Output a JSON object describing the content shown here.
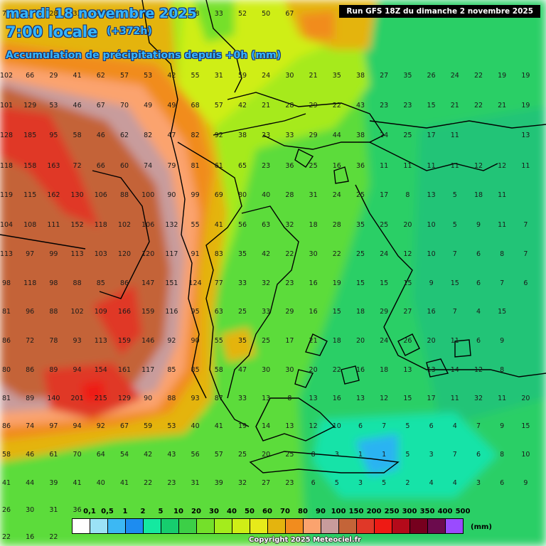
{
  "header": {
    "date_line": "mardi 18 novembre 2025",
    "time_line": "7:00 locale",
    "lead_time": "(+372h)",
    "title": "Accumulation de précipitations depuis +0h (mm)",
    "run_label": "Run GFS 18Z du dimanche 2 novembre 2025"
  },
  "legend": {
    "thresholds": [
      "0,1",
      "0,5",
      "1",
      "2",
      "5",
      "10",
      "20",
      "30",
      "40",
      "50",
      "60",
      "70",
      "80",
      "90",
      "100",
      "150",
      "200",
      "250",
      "300",
      "350",
      "400",
      "500"
    ],
    "colors": [
      "#ffffff",
      "#9be2f6",
      "#3cb8f4",
      "#1d8cf0",
      "#14e9a0",
      "#16cd6e",
      "#3ccf47",
      "#74e02a",
      "#a4ec1c",
      "#cfee16",
      "#e7ea1a",
      "#e4b40e",
      "#f18c1e",
      "#fba36e",
      "#c89c9c",
      "#c46438",
      "#e03828",
      "#ee1a14",
      "#b40a1a",
      "#76001e",
      "#6b0b4d",
      "#9a4bff"
    ],
    "unit": "(mm)"
  },
  "copyright": "Copyright 2025 Meteociel.fr",
  "grid": {
    "rows": [
      [
        "74",
        "17",
        "28",
        "33",
        "20",
        "30",
        "42",
        "29",
        "38",
        "33",
        "52",
        "50",
        "67",
        "",
        "",
        "",
        "",
        "",
        "",
        "",
        "",
        "",
        ""
      ],
      [
        "",
        "",
        "",
        "",
        "",
        "",
        "",
        "",
        "",
        "",
        "",
        "",
        "",
        "",
        "",
        "",
        "",
        "",
        "",
        "",
        "",
        "",
        ""
      ],
      [
        "102",
        "66",
        "29",
        "41",
        "62",
        "57",
        "53",
        "42",
        "55",
        "31",
        "59",
        "24",
        "30",
        "21",
        "35",
        "38",
        "27",
        "35",
        "26",
        "24",
        "22",
        "19",
        "19"
      ],
      [
        "101",
        "129",
        "53",
        "46",
        "67",
        "70",
        "49",
        "49",
        "68",
        "57",
        "42",
        "21",
        "28",
        "29",
        "22",
        "43",
        "23",
        "23",
        "15",
        "21",
        "22",
        "21",
        "19"
      ],
      [
        "128",
        "185",
        "95",
        "58",
        "46",
        "62",
        "82",
        "47",
        "82",
        "92",
        "38",
        "23",
        "33",
        "29",
        "44",
        "38",
        "24",
        "25",
        "17",
        "11",
        "",
        "",
        "13"
      ],
      [
        "118",
        "158",
        "163",
        "72",
        "66",
        "60",
        "74",
        "79",
        "81",
        "61",
        "65",
        "23",
        "36",
        "25",
        "16",
        "36",
        "11",
        "11",
        "11",
        "11",
        "12",
        "12",
        "11"
      ],
      [
        "119",
        "115",
        "162",
        "130",
        "106",
        "88",
        "100",
        "90",
        "99",
        "69",
        "80",
        "40",
        "28",
        "31",
        "24",
        "25",
        "17",
        "8",
        "13",
        "5",
        "18",
        "11",
        ""
      ],
      [
        "104",
        "108",
        "111",
        "152",
        "118",
        "102",
        "106",
        "132",
        "55",
        "41",
        "56",
        "63",
        "32",
        "18",
        "28",
        "35",
        "25",
        "20",
        "10",
        "5",
        "9",
        "11",
        "7"
      ],
      [
        "113",
        "97",
        "99",
        "113",
        "103",
        "120",
        "120",
        "117",
        "91",
        "83",
        "35",
        "42",
        "22",
        "30",
        "22",
        "25",
        "24",
        "12",
        "10",
        "7",
        "6",
        "8",
        "7"
      ],
      [
        "98",
        "118",
        "98",
        "88",
        "85",
        "86",
        "147",
        "151",
        "124",
        "77",
        "33",
        "32",
        "23",
        "16",
        "19",
        "15",
        "15",
        "15",
        "9",
        "15",
        "6",
        "7",
        "6"
      ],
      [
        "81",
        "96",
        "88",
        "102",
        "109",
        "166",
        "159",
        "116",
        "95",
        "63",
        "25",
        "33",
        "29",
        "16",
        "15",
        "18",
        "29",
        "27",
        "16",
        "7",
        "4",
        "15",
        ""
      ],
      [
        "86",
        "72",
        "78",
        "93",
        "113",
        "159",
        "146",
        "92",
        "90",
        "55",
        "35",
        "25",
        "17",
        "21",
        "18",
        "20",
        "24",
        "26",
        "20",
        "11",
        "6",
        "9",
        ""
      ],
      [
        "80",
        "86",
        "89",
        "94",
        "154",
        "161",
        "117",
        "85",
        "85",
        "58",
        "47",
        "30",
        "30",
        "20",
        "22",
        "16",
        "18",
        "13",
        "13",
        "14",
        "12",
        "8",
        ""
      ],
      [
        "81",
        "89",
        "140",
        "201",
        "215",
        "129",
        "90",
        "88",
        "93",
        "87",
        "33",
        "13",
        "8",
        "13",
        "16",
        "13",
        "12",
        "15",
        "17",
        "11",
        "32",
        "11",
        "20"
      ],
      [
        "86",
        "74",
        "97",
        "94",
        "92",
        "67",
        "59",
        "53",
        "40",
        "41",
        "19",
        "14",
        "13",
        "12",
        "10",
        "6",
        "7",
        "5",
        "6",
        "4",
        "7",
        "9",
        "15"
      ],
      [
        "58",
        "46",
        "61",
        "70",
        "64",
        "54",
        "42",
        "43",
        "56",
        "57",
        "25",
        "20",
        "25",
        "8",
        "3",
        "1",
        "1",
        "5",
        "3",
        "7",
        "6",
        "8",
        "10"
      ],
      [
        "41",
        "44",
        "39",
        "41",
        "40",
        "41",
        "22",
        "23",
        "31",
        "39",
        "32",
        "27",
        "23",
        "6",
        "5",
        "3",
        "5",
        "2",
        "4",
        "4",
        "3",
        "6",
        "9"
      ],
      [
        "26",
        "30",
        "31",
        "36",
        "",
        "",
        "",
        "",
        "",
        "",
        "",
        "",
        "",
        "",
        "",
        "",
        "",
        "",
        "",
        "",
        "",
        "",
        ""
      ],
      [
        "22",
        "16",
        "22",
        "",
        "",
        "",
        "",
        "",
        "",
        "",
        "",
        "",
        "",
        "",
        "",
        "",
        "",
        "",
        "",
        "",
        "",
        "",
        ""
      ]
    ]
  }
}
